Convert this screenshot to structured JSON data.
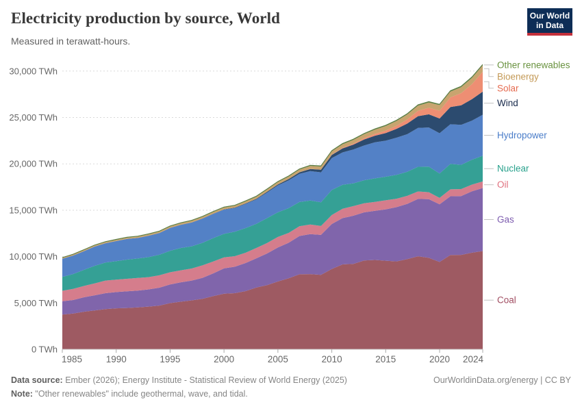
{
  "header": {
    "title": "Electricity production by source, World",
    "subtitle": "Measured in terawatt-hours.",
    "logo": {
      "line1": "Our World",
      "line2": "in Data",
      "bg": "#0d2d56",
      "accent": "#c4303b"
    }
  },
  "footer": {
    "source_label": "Data source:",
    "source_text": " Ember (2026); Energy Institute - Statistical Review of World Energy (2025)",
    "note_label": "Note:",
    "note_text": " \"Other renewables\" include geothermal, wave, and tidal.",
    "right_text": "OurWorldinData.org/energy | CC BY"
  },
  "chart_data": {
    "type": "area",
    "stacked": true,
    "title": "Electricity production by source, World",
    "xlabel": "",
    "ylabel": "terawatt-hours",
    "unit": "TWh",
    "ylim": [
      0,
      31500
    ],
    "grid": "dashed-horizontal",
    "legend_position": "right",
    "grid_color": "#d9d9d9",
    "axis_text_color": "#666666",
    "tick_color": "#a8a8a8",
    "connector_color": "#c2c2c2",
    "top_outline_color": "#5d7a42",
    "y_ticks": [
      {
        "value": 0,
        "label": "0 TWh"
      },
      {
        "value": 5000,
        "label": "5,000 TWh"
      },
      {
        "value": 10000,
        "label": "10,000 TWh"
      },
      {
        "value": 15000,
        "label": "15,000 TWh"
      },
      {
        "value": 20000,
        "label": "20,000 TWh"
      },
      {
        "value": 25000,
        "label": "25,000 TWh"
      },
      {
        "value": 30000,
        "label": "30,000 TWh"
      }
    ],
    "x_ticks": [
      1985,
      1990,
      1995,
      2000,
      2005,
      2010,
      2015,
      2020,
      2024
    ],
    "x": [
      1985,
      1986,
      1987,
      1988,
      1989,
      1990,
      1991,
      1992,
      1993,
      1994,
      1995,
      1996,
      1997,
      1998,
      1999,
      2000,
      2001,
      2002,
      2003,
      2004,
      2005,
      2006,
      2007,
      2008,
      2009,
      2010,
      2011,
      2012,
      2013,
      2014,
      2015,
      2016,
      2017,
      2018,
      2019,
      2020,
      2021,
      2022,
      2023,
      2024
    ],
    "series": [
      {
        "name": "Coal",
        "color": "#9e5a62",
        "label_color": "#a14e62",
        "values": [
          3748,
          3852,
          4055,
          4195,
          4333,
          4426,
          4464,
          4521,
          4607,
          4716,
          4984,
          5142,
          5283,
          5446,
          5744,
          5994,
          6055,
          6280,
          6662,
          6930,
          7321,
          7657,
          8096,
          8119,
          8038,
          8670,
          9160,
          9220,
          9580,
          9640,
          9555,
          9480,
          9730,
          10040,
          9870,
          9421,
          10170,
          10186,
          10420,
          10600
        ]
      },
      {
        "name": "Gas",
        "color": "#8065ab",
        "label_color": "#7d5caf",
        "values": [
          1444,
          1466,
          1559,
          1629,
          1723,
          1748,
          1797,
          1810,
          1859,
          1933,
          2009,
          2085,
          2134,
          2264,
          2450,
          2741,
          2853,
          3026,
          3157,
          3408,
          3662,
          3836,
          4129,
          4304,
          4301,
          4846,
          4988,
          5188,
          5190,
          5290,
          5543,
          5850,
          5960,
          6180,
          6330,
          6214,
          6340,
          6336,
          6620,
          6790
        ]
      },
      {
        "name": "Oil",
        "color": "#d57d8c",
        "label_color": "#e0707e",
        "values": [
          1125,
          1203,
          1216,
          1286,
          1357,
          1338,
          1345,
          1364,
          1322,
          1337,
          1315,
          1296,
          1301,
          1343,
          1277,
          1177,
          1134,
          1104,
          1114,
          1128,
          1136,
          1066,
          1056,
          1030,
          966,
          965,
          1011,
          1033,
          984,
          967,
          973,
          910,
          860,
          800,
          740,
          692,
          740,
          762,
          720,
          710
        ]
      },
      {
        "name": "Nuclear",
        "color": "#35a095",
        "label_color": "#2aa28d",
        "values": [
          1489,
          1594,
          1735,
          1893,
          1945,
          1999,
          2071,
          2097,
          2155,
          2210,
          2321,
          2406,
          2390,
          2433,
          2523,
          2540,
          2637,
          2661,
          2603,
          2684,
          2661,
          2660,
          2608,
          2597,
          2560,
          2700,
          2584,
          2461,
          2478,
          2535,
          2540,
          2570,
          2590,
          2660,
          2760,
          2629,
          2750,
          2611,
          2690,
          2768
        ]
      },
      {
        "name": "Hydropower",
        "color": "#5381c6",
        "label_color": "#4a7dc9",
        "values": [
          1954,
          1997,
          2021,
          2074,
          2082,
          2159,
          2221,
          2215,
          2302,
          2345,
          2458,
          2497,
          2566,
          2607,
          2610,
          2611,
          2560,
          2610,
          2633,
          2759,
          2902,
          3005,
          3030,
          3178,
          3222,
          3437,
          3490,
          3650,
          3750,
          3890,
          3884,
          4010,
          4060,
          4190,
          4220,
          4345,
          4270,
          4311,
          4210,
          4430
        ]
      },
      {
        "name": "Wind",
        "color": "#2c4b6f",
        "label_color": "#16284a",
        "values": [
          0,
          0,
          1,
          1,
          2,
          4,
          4,
          5,
          6,
          7,
          8,
          9,
          12,
          16,
          21,
          31,
          38,
          52,
          63,
          85,
          104,
          133,
          171,
          221,
          276,
          346,
          437,
          523,
          646,
          712,
          831,
          957,
          1140,
          1270,
          1420,
          1586,
          1860,
          2104,
          2310,
          2494
        ]
      },
      {
        "name": "Solar",
        "color": "#ee8e73",
        "label_color": "#e56b50",
        "values": [
          0,
          0,
          0,
          0,
          0,
          0,
          0,
          0,
          0,
          0,
          1,
          1,
          1,
          1,
          1,
          1,
          2,
          2,
          2,
          3,
          4,
          5,
          7,
          12,
          20,
          33,
          65,
          99,
          135,
          190,
          256,
          328,
          445,
          574,
          699,
          846,
          1040,
          1310,
          1630,
          2131
        ]
      },
      {
        "name": "Bioenergy",
        "color": "#c8a46f",
        "label_color": "#c49a57",
        "values": [
          104,
          109,
          115,
          120,
          126,
          131,
          136,
          141,
          146,
          151,
          156,
          163,
          170,
          176,
          183,
          190,
          201,
          212,
          223,
          234,
          246,
          267,
          288,
          309,
          330,
          352,
          380,
          409,
          437,
          466,
          494,
          515,
          537,
          558,
          580,
          601,
          623,
          645,
          668,
          690
        ]
      },
      {
        "name": "Other renewables",
        "color": "#5d8a4b",
        "label_color": "#69923f",
        "values": [
          36,
          40,
          44,
          48,
          52,
          56,
          56,
          57,
          57,
          58,
          58,
          59,
          59,
          60,
          60,
          61,
          62,
          63,
          64,
          65,
          66,
          68,
          70,
          72,
          73,
          75,
          77,
          80,
          82,
          85,
          87,
          89,
          90,
          92,
          94,
          95,
          98,
          100,
          103,
          107
        ]
      }
    ]
  }
}
